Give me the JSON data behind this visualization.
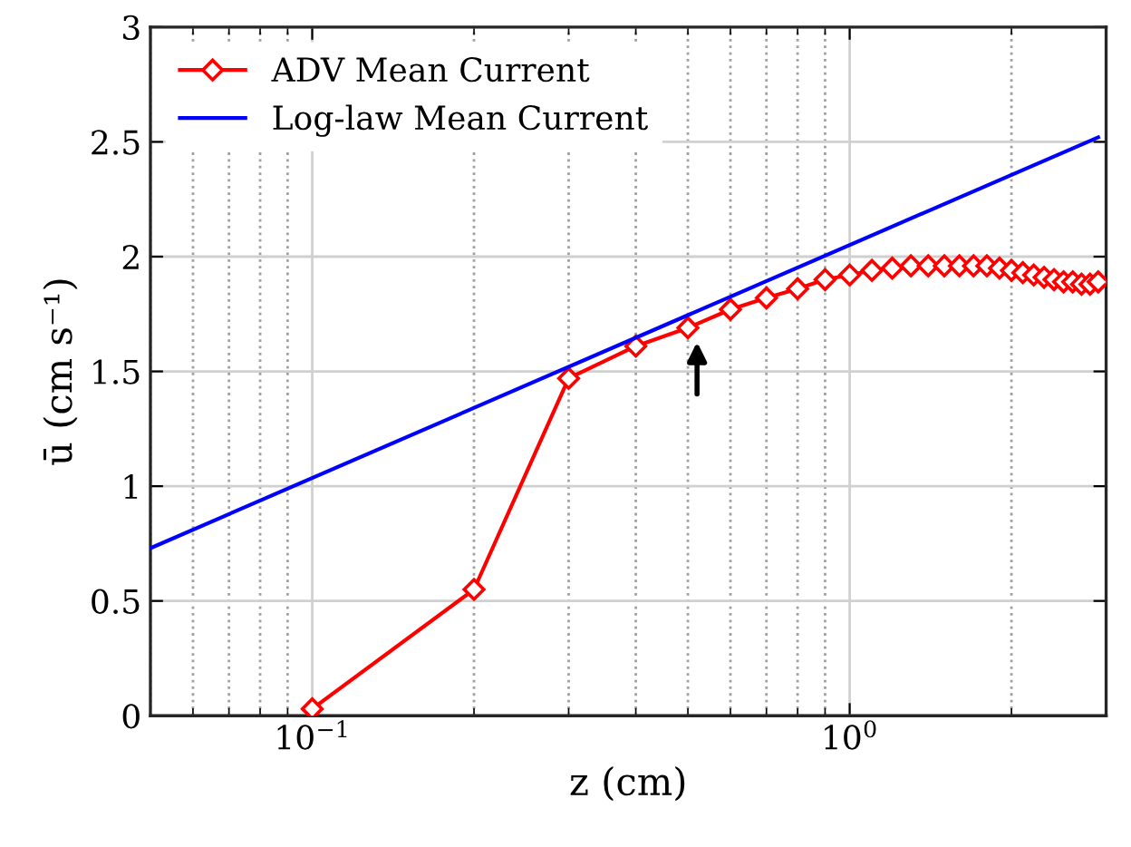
{
  "chart_data": {
    "type": "line",
    "xlabel": "z (cm)",
    "ylabel": "ū (cm s⁻¹)",
    "log": "x",
    "xlim": [
      0.05,
      3
    ],
    "ylim": [
      0,
      3
    ],
    "xticks": [
      {
        "value": 0.1,
        "label": "10$^{−1}$"
      },
      {
        "value": 1,
        "label": "10$^{0}$"
      }
    ],
    "yticks": [
      0,
      0.5,
      1,
      1.5,
      2,
      2.5,
      3
    ],
    "grid": true,
    "legend": "top left",
    "series": [
      {
        "name": "ADV Mean Current",
        "color": "#ff0000",
        "marker": "diamond",
        "x": [
          0.1,
          0.2,
          0.3,
          0.4,
          0.5,
          0.6,
          0.7,
          0.8,
          0.9,
          1.0,
          1.1,
          1.2,
          1.3,
          1.4,
          1.5,
          1.6,
          1.7,
          1.8,
          1.9,
          2.0,
          2.1,
          2.2,
          2.3,
          2.4,
          2.5,
          2.6,
          2.7,
          2.8,
          2.9
        ],
        "values": [
          0.03,
          0.55,
          1.47,
          1.61,
          1.69,
          1.77,
          1.82,
          1.86,
          1.9,
          1.92,
          1.94,
          1.95,
          1.96,
          1.96,
          1.96,
          1.96,
          1.96,
          1.96,
          1.95,
          1.94,
          1.93,
          1.92,
          1.91,
          1.9,
          1.89,
          1.89,
          1.88,
          1.88,
          1.89
        ]
      },
      {
        "name": "Log-law Mean Current",
        "color": "#0000ff",
        "marker": "none",
        "x": [
          0.05,
          2.9
        ],
        "values": [
          0.73,
          2.52
        ]
      }
    ]
  }
}
